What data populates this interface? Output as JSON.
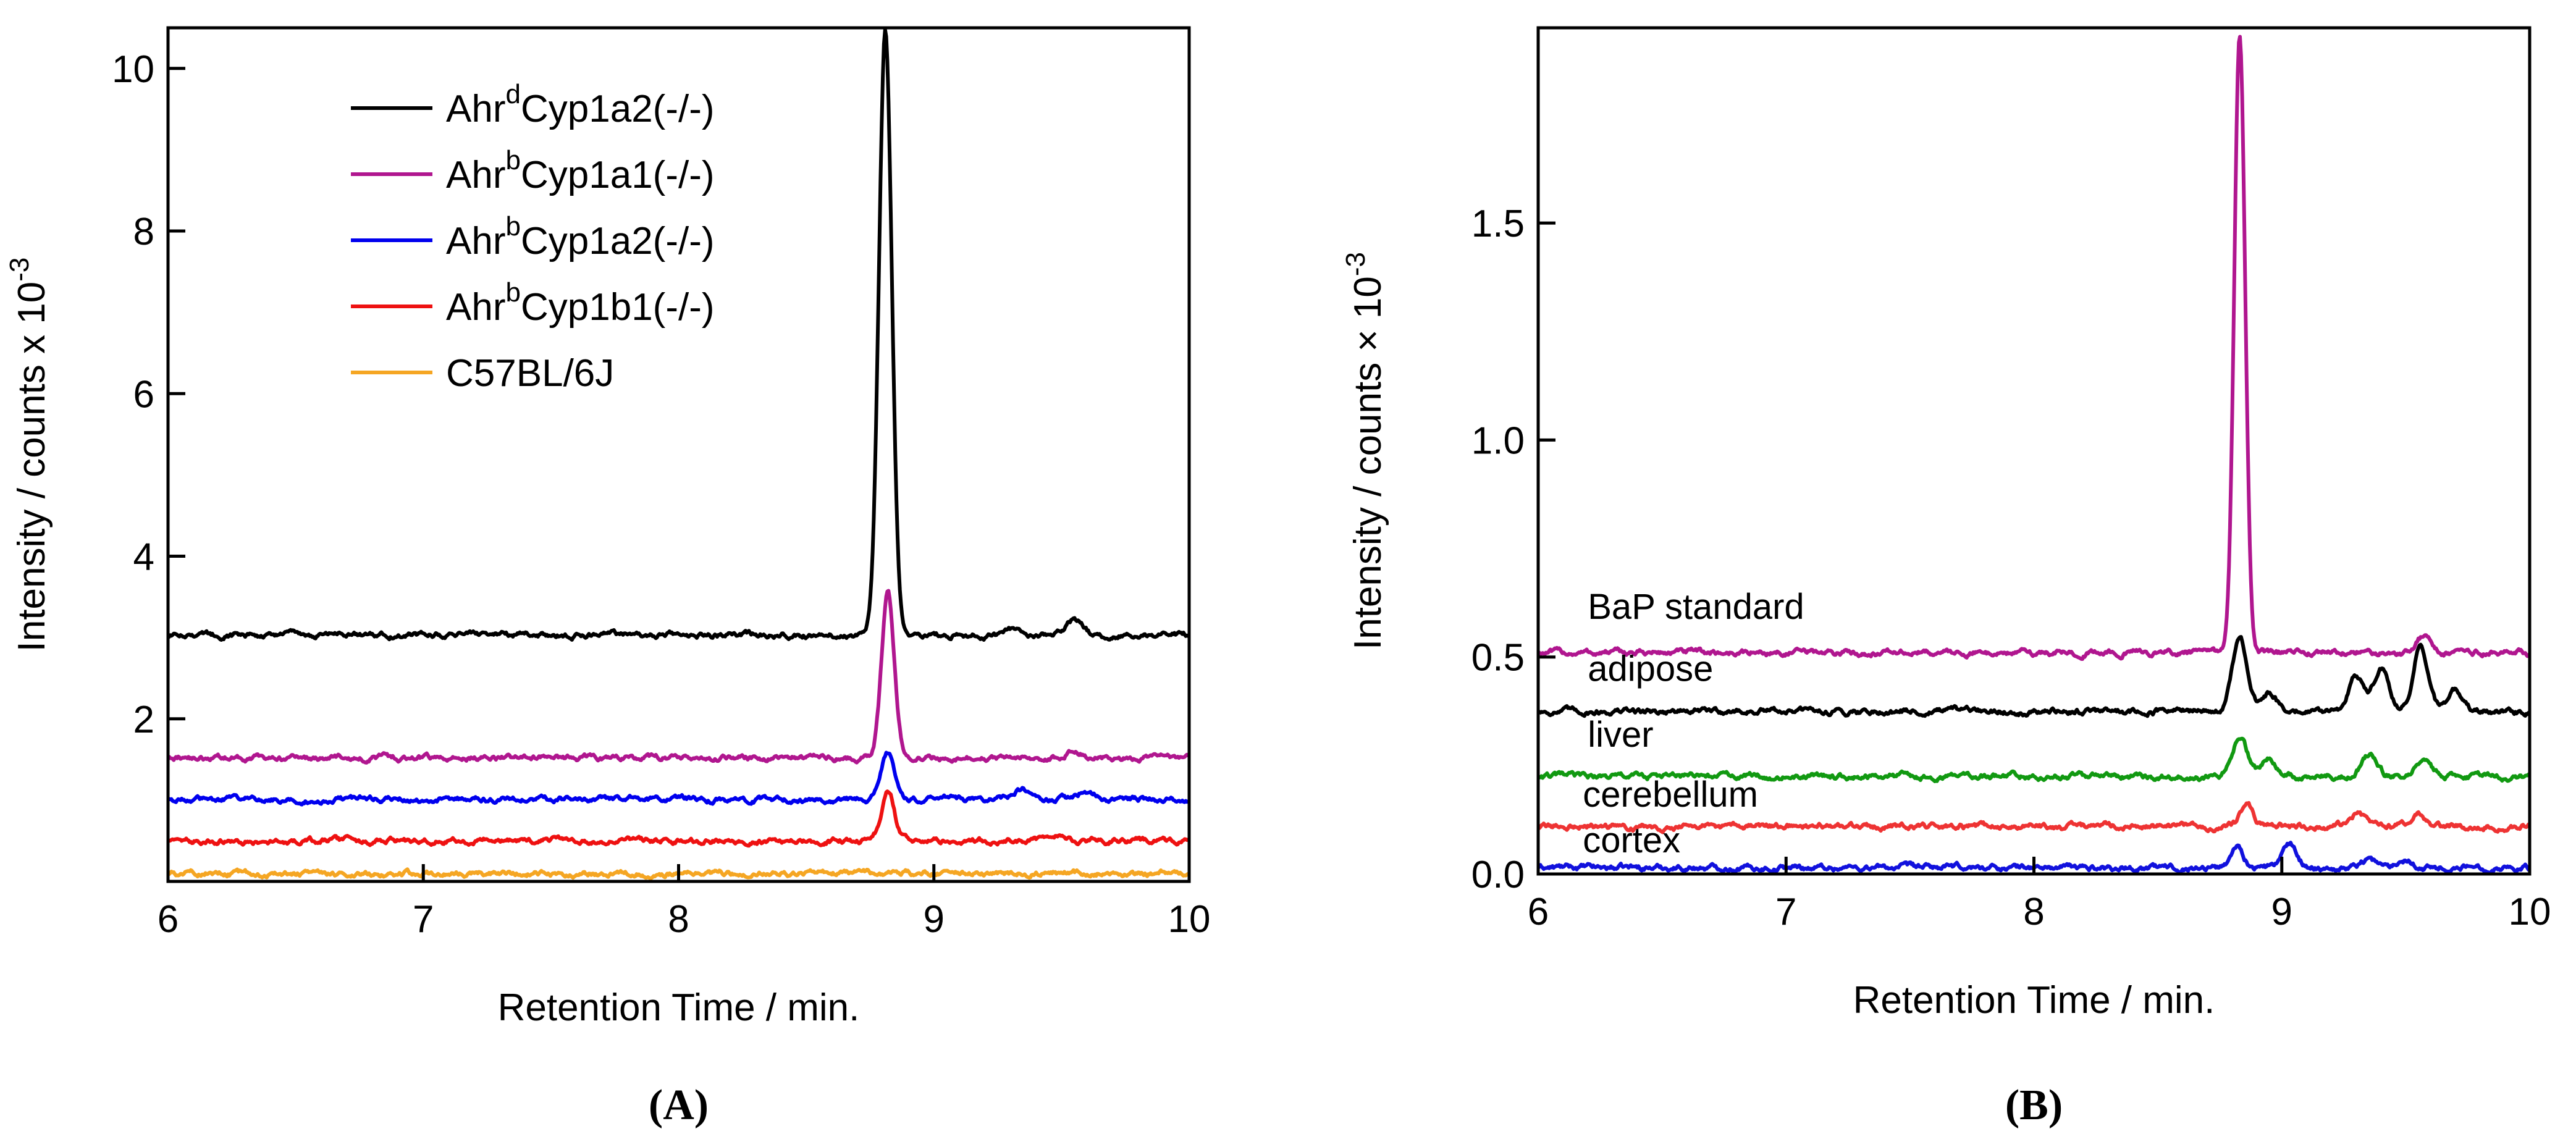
{
  "chart_data": [
    {
      "type": "line",
      "panel_label": "(A)",
      "xlabel": "Retention Time / min.",
      "ylabel": "Intensity / counts x 10",
      "ylabel_exponent": "-3",
      "xlim": [
        6,
        10
      ],
      "ylim": [
        0,
        10.5
      ],
      "xticks": [
        6,
        7,
        8,
        9,
        10
      ],
      "yticks": [
        2,
        4,
        6,
        8,
        10
      ],
      "legend_position": "upper-left",
      "series": [
        {
          "name": "Ahr",
          "name_sup": "d",
          "name_rest": "Cyp1a2(-/-)",
          "color": "#000000",
          "baseline": 3.03,
          "peak_time": 8.81,
          "peak_value": 10.45,
          "peak_width": 0.025,
          "minor_peaks": [
            [
              9.55,
              0.18
            ],
            [
              9.32,
              0.08
            ]
          ]
        },
        {
          "name": "Ahr",
          "name_sup": "b",
          "name_rest": "Cyp1a1(-/-)",
          "color": "#b0168f",
          "baseline": 1.52,
          "peak_time": 8.82,
          "peak_value": 3.53,
          "peak_width": 0.025,
          "minor_peaks": [
            [
              9.55,
              0.08
            ]
          ]
        },
        {
          "name": "Ahr",
          "name_sup": "b",
          "name_rest": "Cyp1a2(-/-)",
          "color": "#0000ee",
          "baseline": 1.01,
          "peak_time": 8.82,
          "peak_value": 1.57,
          "peak_width": 0.025,
          "minor_peaks": [
            [
              9.35,
              0.12
            ],
            [
              9.6,
              0.1
            ],
            [
              9.05,
              0.05
            ]
          ]
        },
        {
          "name": "Ahr",
          "name_sup": "b",
          "name_rest": "Cyp1b1(-/-)",
          "color": "#ee1111",
          "baseline": 0.5,
          "peak_time": 8.82,
          "peak_value": 1.12,
          "peak_width": 0.025,
          "minor_peaks": [
            [
              9.5,
              0.05
            ]
          ]
        },
        {
          "name": "C57BL/6J",
          "name_sup": "",
          "name_rest": "",
          "color": "#f5a623",
          "baseline": 0.1,
          "peak_time": 8.82,
          "peak_value": 0.1,
          "peak_width": 0.025,
          "minor_peaks": []
        }
      ]
    },
    {
      "type": "line",
      "panel_label": "(B)",
      "xlabel": "Retention Time / min.",
      "ylabel": "Intensity / counts × 10",
      "ylabel_exponent": "-3",
      "xlim": [
        6,
        10
      ],
      "ylim": [
        0,
        1.95
      ],
      "xticks": [
        6,
        7,
        8,
        9,
        10
      ],
      "yticks": [
        0.0,
        0.5,
        1.0,
        1.5
      ],
      "ytick_labels": [
        "0.0",
        "0.5",
        "1.0",
        "1.5"
      ],
      "series": [
        {
          "name": "BaP standard",
          "color": "#b0168f",
          "baseline": 0.51,
          "peak_time": 8.83,
          "peak_value": 1.93,
          "peak_width": 0.022,
          "minor_peaks": [
            [
              9.57,
              0.04
            ]
          ],
          "label_x": 6.2,
          "label_y": 0.588
        },
        {
          "name": "adipose",
          "color": "#000000",
          "baseline": 0.375,
          "peak_time": 8.83,
          "peak_value": 0.54,
          "peak_width": 0.03,
          "minor_peaks": [
            [
              8.95,
              0.04
            ],
            [
              9.3,
              0.08
            ],
            [
              9.4,
              0.1
            ],
            [
              9.56,
              0.15
            ],
            [
              9.7,
              0.05
            ]
          ],
          "label_x": 6.2,
          "label_y": 0.445
        },
        {
          "name": "liver",
          "color": "#119911",
          "baseline": 0.225,
          "peak_time": 8.83,
          "peak_value": 0.32,
          "peak_width": 0.03,
          "minor_peaks": [
            [
              8.95,
              0.04
            ],
            [
              9.35,
              0.05
            ],
            [
              9.57,
              0.04
            ]
          ],
          "label_x": 6.2,
          "label_y": 0.293
        },
        {
          "name": "cerebellum",
          "color": "#ee3333",
          "baseline": 0.11,
          "peak_time": 8.86,
          "peak_value": 0.16,
          "peak_width": 0.025,
          "minor_peaks": [
            [
              9.3,
              0.03
            ],
            [
              9.55,
              0.03
            ]
          ],
          "label_x": 6.18,
          "label_y": 0.155
        },
        {
          "name": "cortex",
          "color": "#1111dd",
          "baseline": 0.015,
          "peak_time": 8.82,
          "peak_value": 0.065,
          "peak_width": 0.025,
          "minor_peaks": [
            [
              9.03,
              0.05
            ],
            [
              9.35,
              0.02
            ],
            [
              9.5,
              0.02
            ]
          ],
          "label_x": 6.18,
          "label_y": 0.05
        }
      ]
    }
  ]
}
